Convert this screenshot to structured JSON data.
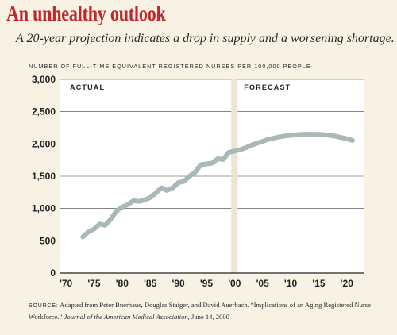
{
  "header": {
    "title": "An unhealthy outlook",
    "subtitle": "A 20-year projection indicates a drop in supply and a worsening shortage."
  },
  "chart_data": {
    "type": "line",
    "title": "An unhealthy outlook",
    "ylabel": "Number of full-time equivalent registered nurses per 100,000 people",
    "xlabel": "",
    "ylim": [
      0,
      3000
    ],
    "xlim": [
      1969,
      2023
    ],
    "y_ticks": [
      0,
      500,
      1000,
      1500,
      2000,
      2500,
      3000
    ],
    "y_tick_labels": [
      "0",
      "500",
      "1,000",
      "1,500",
      "2,000",
      "2,500",
      "3,000"
    ],
    "x_ticks": [
      1970,
      1975,
      1980,
      1985,
      1990,
      1995,
      2000,
      2005,
      2010,
      2015,
      2020
    ],
    "x_tick_labels": [
      "'70",
      "'75",
      "'80",
      "'85",
      "'90",
      "'95",
      "'00",
      "'05",
      "'10",
      "'15",
      "'20"
    ],
    "grid": "horizontal",
    "divider_year": 2000,
    "regions": [
      {
        "label": "Actual",
        "from": 1969,
        "to": 2000
      },
      {
        "label": "Forecast",
        "from": 2000,
        "to": 2023
      }
    ],
    "series": [
      {
        "name": "",
        "color": "#a9b8b9",
        "x": [
          1973,
          1974,
          1975,
          1976,
          1977,
          1978,
          1979,
          1980,
          1981,
          1982,
          1983,
          1984,
          1985,
          1986,
          1987,
          1988,
          1989,
          1990,
          1991,
          1992,
          1993,
          1994,
          1995,
          1996,
          1997,
          1998,
          1999,
          2000,
          2001,
          2002,
          2003,
          2004,
          2005,
          2006,
          2007,
          2008,
          2009,
          2010,
          2011,
          2012,
          2013,
          2014,
          2015,
          2016,
          2017,
          2018,
          2019,
          2020,
          2021
        ],
        "y": [
          560,
          640,
          680,
          760,
          740,
          840,
          960,
          1020,
          1060,
          1120,
          1110,
          1130,
          1170,
          1240,
          1320,
          1280,
          1320,
          1400,
          1420,
          1500,
          1560,
          1680,
          1690,
          1700,
          1770,
          1760,
          1870,
          1890,
          1910,
          1940,
          1980,
          2010,
          2040,
          2070,
          2090,
          2110,
          2125,
          2135,
          2143,
          2148,
          2150,
          2150,
          2148,
          2142,
          2133,
          2120,
          2100,
          2080,
          2055
        ]
      }
    ]
  },
  "source": {
    "label": "source:",
    "text_before": " Adapted from Peter Buerhaus, Douglas Staiger, and David Auerbach. “Implications of an Aging Registered Nurse Workforce.” ",
    "journal": "Journal of the American Medical Association",
    "text_after": ", June 14, 2000"
  },
  "colors": {
    "background": "#f7f2e4",
    "plot": "#ffffff",
    "title": "#c0282d",
    "line": "#a9b8b9",
    "divider": "#ece5d3",
    "grid": "#3a3a3a"
  }
}
